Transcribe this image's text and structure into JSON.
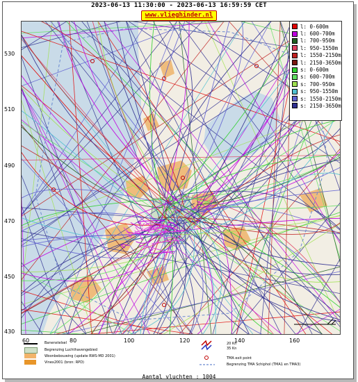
{
  "title": "2023-06-13 11:30:00 - 2023-06-13 16:59:59 CET",
  "site_link": "www.vlieghinder.nl",
  "map": {
    "y_ticks": [
      "530",
      "510",
      "490",
      "470",
      "450",
      "430"
    ],
    "x_ticks": [
      "60",
      "80",
      "100",
      "120",
      "140",
      "160"
    ],
    "colors": {
      "sea": "#c9dbe8",
      "land": "#f2eee4",
      "urban": "#efb36a",
      "airport": "#cfe0c8"
    }
  },
  "legend": {
    "items": [
      {
        "label": "l: 0-600m",
        "color": "#e00000"
      },
      {
        "label": "l: 600-700m",
        "color": "#c000e0"
      },
      {
        "label": "l: 700-950m",
        "color": "#206020"
      },
      {
        "label": "l: 950-1550m",
        "color": "#e04060"
      },
      {
        "label": "l: 1550-2150m",
        "color": "#c02020"
      },
      {
        "label": "l: 2150-3650m",
        "color": "#7a1a10"
      },
      {
        "label": "s: 0-600m",
        "color": "#30d030"
      },
      {
        "label": "s: 600-700m",
        "color": "#60e060"
      },
      {
        "label": "s: 700-950m",
        "color": "#a0e050"
      },
      {
        "label": "s: 950-1550m",
        "color": "#50c0d0"
      },
      {
        "label": "s: 1550-2150m",
        "color": "#6060d0"
      },
      {
        "label": "s: 2150-3650m",
        "color": "#303090"
      }
    ]
  },
  "bottom_legend": {
    "runway": "Banenstelsel",
    "airport_boundary": "Begrenzing Luchthavengebied",
    "housing": "Woonbebouwing (update RWS-MD 2001)",
    "vinex": "Vinex2001 (bron: RPD)",
    "cross_wind": [
      "20 Kn",
      "35 Kn"
    ],
    "tma_exit": "TMA exit point",
    "tma_boundary": "Begrenzing TMA Schiphol  (TMA1 en TMA3)"
  },
  "footer": "Aantal vluchten : 1004"
}
